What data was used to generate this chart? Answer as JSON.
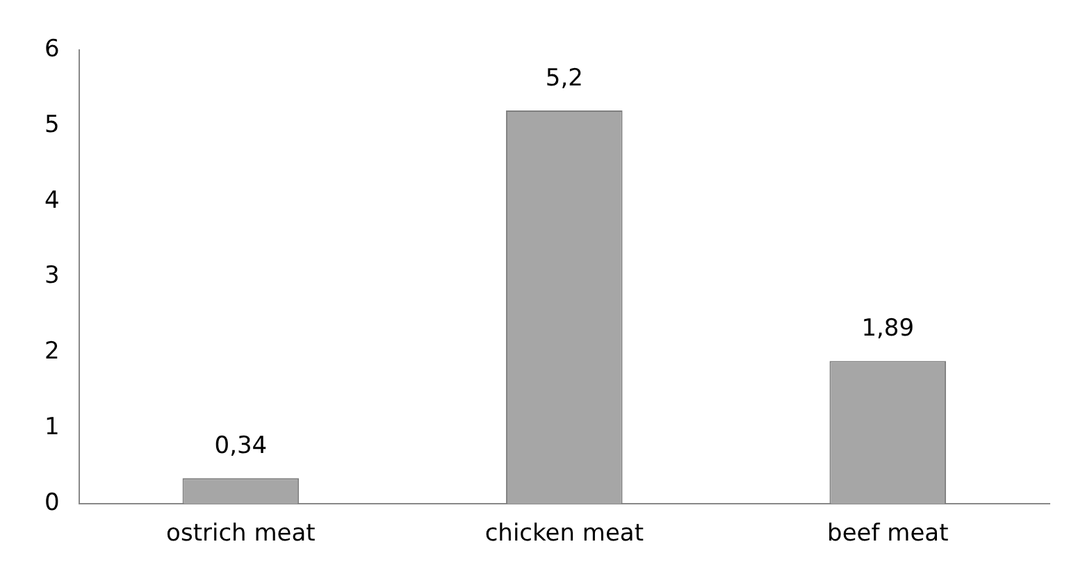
{
  "chart_data": {
    "type": "bar",
    "categories": [
      "ostrich meat",
      "chicken meat",
      "beef meat"
    ],
    "values": [
      0.34,
      5.2,
      1.89
    ],
    "value_labels": [
      "0,34",
      "5,2",
      "1,89"
    ],
    "color": "#a6a6a6",
    "ylim": [
      0,
      6
    ],
    "yticks": [
      0,
      1,
      2,
      3,
      4,
      5,
      6
    ],
    "grid": false,
    "legend": false
  }
}
